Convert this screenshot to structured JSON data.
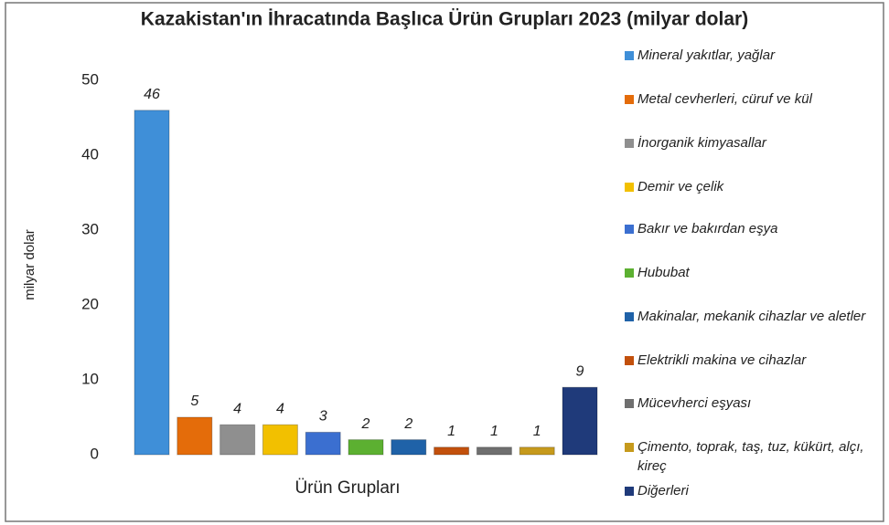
{
  "chart_data": {
    "type": "bar",
    "title": "Kazakistan'ın İhracatında Başlıca Ürün Grupları 2023 (milyar dolar)",
    "y_label": "milyar dolar",
    "x_label": "Ürün Grupları",
    "categories": [
      null
    ],
    "ylim": [
      0,
      50
    ],
    "yticks": [
      0,
      10,
      20,
      30,
      40,
      50
    ],
    "grid": false,
    "legend": "right",
    "series": [
      {
        "name": "Mineral yakıtlar, yağlar",
        "color": "#3f8fd8",
        "values": [
          46
        ]
      },
      {
        "name": "Metal cevherleri, cüruf ve kül",
        "color": "#e46c0a",
        "values": [
          5
        ]
      },
      {
        "name": "İnorganik kimyasallar",
        "color": "#8f8f8f",
        "values": [
          4
        ]
      },
      {
        "name": "Demir ve çelik",
        "color": "#f2c000",
        "values": [
          4
        ]
      },
      {
        "name": "Bakır ve bakırdan eşya",
        "color": "#3b6fd0",
        "values": [
          3
        ]
      },
      {
        "name": "Hububat",
        "color": "#5cb031",
        "values": [
          2
        ]
      },
      {
        "name": "Makinalar, mekanik cihazlar ve aletler",
        "color": "#1f62a8",
        "values": [
          2
        ]
      },
      {
        "name": "Elektrikli makina ve cihazlar",
        "color": "#c2500c",
        "values": [
          1
        ]
      },
      {
        "name": "Mücevherci eşyası",
        "color": "#6f6f6f",
        "values": [
          1
        ]
      },
      {
        "name": "Çimento, toprak, taş, tuz, kükürt, alçı, kireç",
        "color": "#c69a1c",
        "values": [
          1
        ]
      },
      {
        "name": "Diğerleri",
        "color": "#1f3a7a",
        "values": [
          9
        ]
      }
    ]
  }
}
